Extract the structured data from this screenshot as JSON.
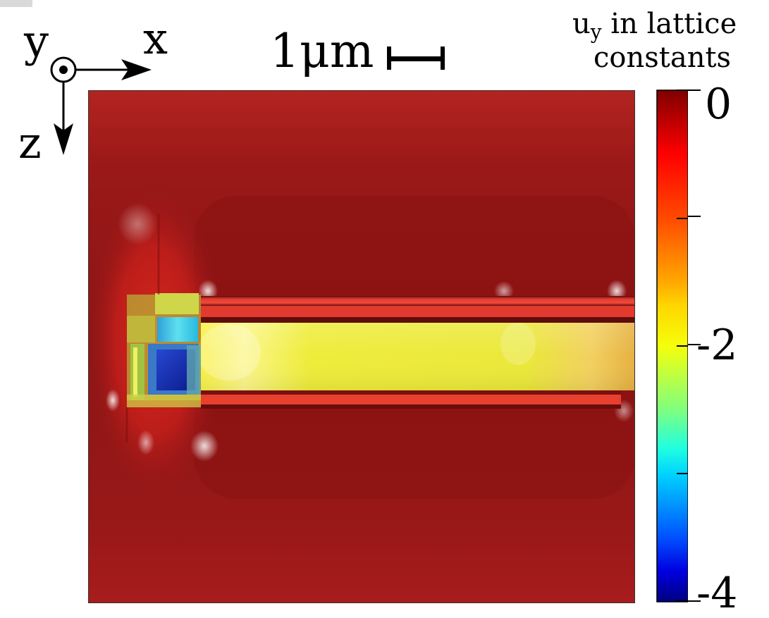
{
  "axes": {
    "y_label": "y",
    "x_label": "x",
    "z_label": "z"
  },
  "scale_bar": {
    "label": "1μm"
  },
  "colorbar": {
    "title_main": "u",
    "title_sub": "y",
    "title_rest": " in lattice",
    "title_line2": "constants",
    "ticks": [
      "0",
      "-2",
      "-4"
    ],
    "range": [
      -4,
      0
    ],
    "colormap": "jet"
  },
  "colors": {
    "background_red": "#9b1616",
    "dark_red": "#7a0d0d",
    "bright_red": "#e8352a",
    "yellow": "#f3f23c",
    "cyan": "#39c9e6",
    "blue": "#1c2fb4"
  }
}
